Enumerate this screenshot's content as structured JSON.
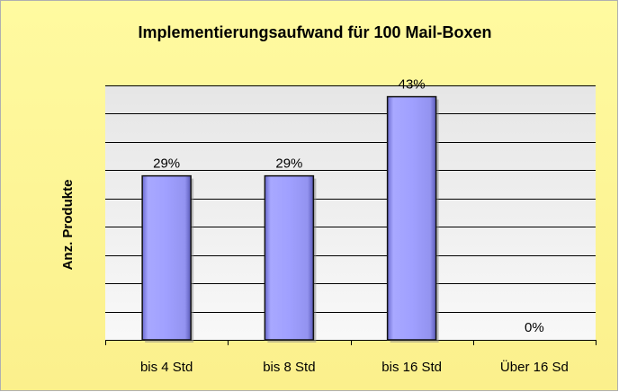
{
  "chart_data": {
    "type": "bar",
    "title": "Implementierungsaufwand für 100 Mail-Boxen",
    "y_label": "Anz. Produkte",
    "categories": [
      "bis 4 Std",
      "bis 8 Std",
      "bis 16 Std",
      "Über 16 Sd"
    ],
    "values": [
      29,
      29,
      43,
      0
    ],
    "value_labels": [
      "29%",
      "29%",
      "43%",
      "0%"
    ],
    "color": "#9999ff",
    "ylim": [
      0,
      45
    ],
    "yticks": [
      0,
      5,
      10,
      15,
      20,
      25,
      30,
      35,
      40,
      45
    ],
    "grid": true
  }
}
